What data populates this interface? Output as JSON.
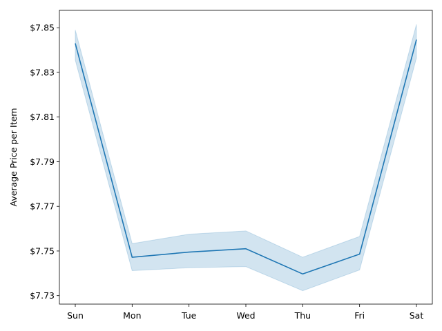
{
  "chart_data": {
    "type": "line",
    "title": "",
    "xlabel": "",
    "ylabel": "Average Price per Item",
    "categories": [
      "Sun",
      "Mon",
      "Tue",
      "Wed",
      "Thu",
      "Fri",
      "Sat"
    ],
    "series": [
      {
        "values": [
          7.843,
          7.7472,
          7.7495,
          7.751,
          7.7397,
          7.7486,
          7.8447
        ],
        "ci_lower": [
          7.8355,
          7.7412,
          7.7425,
          7.743,
          7.7322,
          7.7415,
          7.8365
        ],
        "ci_upper": [
          7.849,
          7.7533,
          7.7575,
          7.759,
          7.7472,
          7.7565,
          7.8515
        ]
      }
    ],
    "ylim": [
      7.7262,
      7.8578
    ],
    "yticks": [
      7.73,
      7.75,
      7.77,
      7.79,
      7.81,
      7.83,
      7.85
    ],
    "ytick_labels": [
      "$7.73",
      "$7.75",
      "$7.77",
      "$7.79",
      "$7.81",
      "$7.83",
      "$7.85"
    ],
    "grid": false,
    "colors": {
      "line": "#1f77b4",
      "band": "#1f77b4"
    }
  }
}
